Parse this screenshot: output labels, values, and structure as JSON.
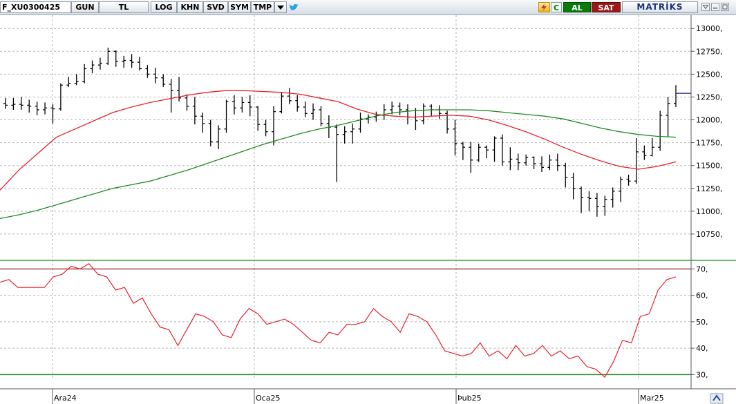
{
  "toolbar": {
    "symbol": "F_XU0300425",
    "buttons": [
      "GUN",
      "TL",
      "LOG",
      "KHN",
      "SVD",
      "SYM",
      "TMP"
    ],
    "lightning_icon": "lightning-icon",
    "refresh_label": "C",
    "buy_label": "AL",
    "sell_label": "SAT",
    "brand": "MATRİKS",
    "colors": {
      "buy": "#0a7a0a",
      "sell": "#9a1a1a",
      "brand": "#1c2f7a"
    }
  },
  "chart_data": [
    {
      "type": "ohlc",
      "y_ticks": [
        "13000,",
        "12750,",
        "12500,",
        "12250,",
        "12000,",
        "11750,",
        "11500,",
        "11250,",
        "11000,",
        "10750,"
      ],
      "ylim": [
        10500,
        13100
      ],
      "x_labels": [
        "Ara24",
        "Oca25",
        "Þub25",
        "Mar25"
      ],
      "grid": true,
      "last_price_marker": 12290,
      "bars": [
        [
          12180,
          12240,
          12120,
          12160
        ],
        [
          12160,
          12240,
          12110,
          12170
        ],
        [
          12170,
          12250,
          12110,
          12160
        ],
        [
          12160,
          12220,
          12080,
          12150
        ],
        [
          12150,
          12200,
          12050,
          12110
        ],
        [
          12110,
          12190,
          12060,
          12130
        ],
        [
          12130,
          12170,
          11960,
          12120
        ],
        [
          12120,
          12400,
          12100,
          12380
        ],
        [
          12380,
          12470,
          12360,
          12400
        ],
        [
          12400,
          12500,
          12380,
          12420
        ],
        [
          12420,
          12610,
          12400,
          12560
        ],
        [
          12560,
          12650,
          12510,
          12600
        ],
        [
          12600,
          12680,
          12550,
          12620
        ],
        [
          12620,
          12790,
          12600,
          12750
        ],
        [
          12750,
          12760,
          12580,
          12640
        ],
        [
          12640,
          12700,
          12570,
          12650
        ],
        [
          12650,
          12720,
          12570,
          12630
        ],
        [
          12630,
          12690,
          12540,
          12560
        ],
        [
          12560,
          12600,
          12460,
          12500
        ],
        [
          12500,
          12570,
          12400,
          12460
        ],
        [
          12460,
          12500,
          12360,
          12390
        ],
        [
          12390,
          12450,
          12080,
          12320
        ],
        [
          12320,
          12470,
          12200,
          12240
        ],
        [
          12240,
          12280,
          12100,
          12150
        ],
        [
          12150,
          12250,
          11950,
          12040
        ],
        [
          12040,
          12080,
          11860,
          11960
        ],
        [
          11960,
          12000,
          11710,
          11760
        ],
        [
          11760,
          11940,
          11680,
          11900
        ],
        [
          11900,
          12220,
          11860,
          12200
        ],
        [
          12200,
          12270,
          12060,
          12130
        ],
        [
          12130,
          12250,
          12080,
          12190
        ],
        [
          12190,
          12270,
          12040,
          12140
        ],
        [
          12140,
          12150,
          11880,
          11950
        ],
        [
          11950,
          12000,
          11820,
          11870
        ],
        [
          11870,
          12150,
          11720,
          12090
        ],
        [
          12090,
          12300,
          12070,
          12260
        ],
        [
          12260,
          12350,
          12170,
          12210
        ],
        [
          12210,
          12270,
          12090,
          12140
        ],
        [
          12140,
          12200,
          12030,
          12070
        ],
        [
          12070,
          12180,
          12000,
          12110
        ],
        [
          12110,
          12150,
          11930,
          11960
        ],
        [
          11960,
          12050,
          11800,
          11920
        ],
        [
          11920,
          11950,
          11320,
          11840
        ],
        [
          11840,
          11930,
          11740,
          11870
        ],
        [
          11870,
          11960,
          11740,
          11900
        ],
        [
          11900,
          12080,
          11860,
          12010
        ],
        [
          12010,
          12060,
          11960,
          12030
        ],
        [
          12030,
          12090,
          11980,
          12050
        ],
        [
          12050,
          12170,
          12000,
          12110
        ],
        [
          12110,
          12200,
          12060,
          12150
        ],
        [
          12150,
          12190,
          12050,
          12110
        ],
        [
          12110,
          12170,
          11950,
          12030
        ],
        [
          12030,
          12130,
          11890,
          11990
        ],
        [
          11990,
          12180,
          11950,
          12150
        ],
        [
          12150,
          12170,
          12040,
          12110
        ],
        [
          12110,
          12160,
          12010,
          12070
        ],
        [
          12070,
          12100,
          11850,
          11900
        ],
        [
          11900,
          12000,
          11610,
          11740
        ],
        [
          11740,
          11760,
          11560,
          11700
        ],
        [
          11700,
          11760,
          11420,
          11560
        ],
        [
          11560,
          11740,
          11540,
          11700
        ],
        [
          11700,
          11720,
          11580,
          11670
        ],
        [
          11670,
          11820,
          11540,
          11800
        ],
        [
          11800,
          11840,
          11500,
          11540
        ],
        [
          11540,
          11700,
          11450,
          11570
        ],
        [
          11570,
          11630,
          11450,
          11530
        ],
        [
          11530,
          11620,
          11500,
          11590
        ],
        [
          11590,
          11600,
          11460,
          11520
        ],
        [
          11520,
          11600,
          11430,
          11480
        ],
        [
          11480,
          11620,
          11450,
          11560
        ],
        [
          11560,
          11630,
          11440,
          11500
        ],
        [
          11500,
          11530,
          11260,
          11370
        ],
        [
          11370,
          11420,
          11130,
          11250
        ],
        [
          11250,
          11270,
          10980,
          11150
        ],
        [
          11150,
          11220,
          11000,
          11140
        ],
        [
          11140,
          11200,
          10940,
          11050
        ],
        [
          11050,
          11170,
          10950,
          11130
        ],
        [
          11130,
          11260,
          11040,
          11220
        ],
        [
          11220,
          11380,
          11100,
          11350
        ],
        [
          11350,
          11400,
          11280,
          11330
        ],
        [
          11330,
          11800,
          11300,
          11650
        ],
        [
          11650,
          11720,
          11560,
          11610
        ],
        [
          11610,
          11800,
          11600,
          11700
        ],
        [
          11700,
          12100,
          11660,
          12050
        ],
        [
          12050,
          12250,
          11820,
          12180
        ],
        [
          12180,
          12380,
          12140,
          12290
        ]
      ],
      "ma_red": [
        11230,
        11450,
        11630,
        11810,
        11900,
        11990,
        12080,
        12140,
        12190,
        12230,
        12270,
        12300,
        12320,
        12320,
        12310,
        12300,
        12280,
        12240,
        12200,
        12120,
        12060,
        12040,
        12030,
        12040,
        12050,
        12040,
        12000,
        11940,
        11870,
        11790,
        11700,
        11620,
        11550,
        11490,
        11460,
        11490,
        11540
      ],
      "ma_green": [
        10920,
        10960,
        11010,
        11070,
        11130,
        11190,
        11250,
        11290,
        11330,
        11390,
        11450,
        11520,
        11590,
        11660,
        11730,
        11790,
        11850,
        11900,
        11940,
        11990,
        12040,
        12080,
        12100,
        12110,
        12110,
        12110,
        12100,
        12080,
        12060,
        12040,
        12010,
        11960,
        11910,
        11870,
        11840,
        11820,
        11810
      ]
    },
    {
      "type": "line",
      "name": "RSI",
      "y_ticks": [
        "70,",
        "60,",
        "50,",
        "40,",
        "30,"
      ],
      "ylim": [
        28,
        73
      ],
      "reference_lines": [
        70,
        30
      ],
      "values": [
        65,
        66,
        63,
        63,
        63,
        63,
        67,
        68,
        71,
        70,
        72,
        68,
        67,
        62,
        63,
        57,
        59,
        53,
        48,
        47,
        41,
        47,
        53,
        52,
        50,
        45,
        44,
        51,
        55,
        53,
        49,
        50,
        51,
        49,
        46,
        43,
        42,
        46,
        45,
        49,
        49,
        50,
        55,
        52,
        50,
        46,
        53,
        52,
        50,
        45,
        39,
        38,
        37,
        38,
        42,
        37,
        39,
        36,
        41,
        37,
        38,
        41,
        37,
        39,
        36,
        37,
        33,
        32,
        29,
        35,
        43,
        42,
        52,
        53,
        62,
        66,
        67
      ],
      "colors": {
        "line": "#e8202a",
        "upper_ref": "#8b1a1a",
        "lower_ref": "#2e8b2e"
      }
    }
  ]
}
